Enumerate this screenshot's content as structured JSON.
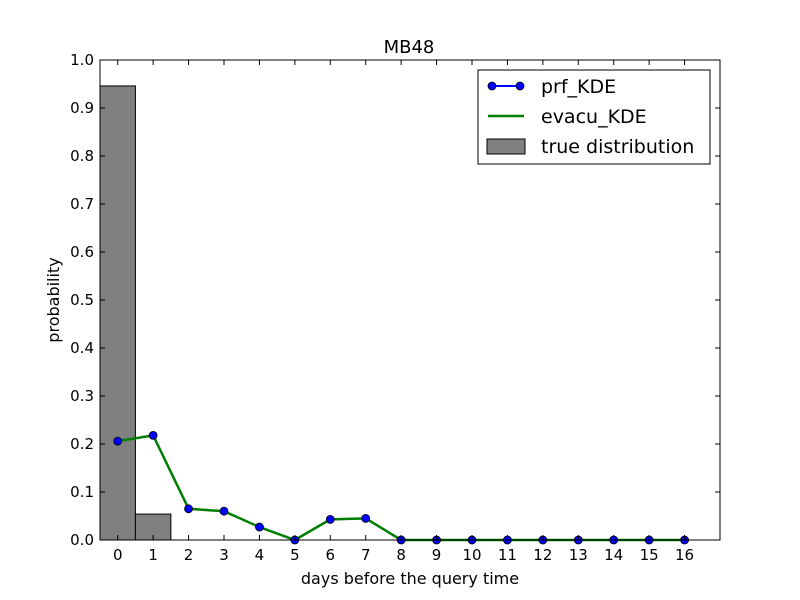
{
  "chart_data": {
    "type": "line",
    "title": "MB48",
    "xlabel": "days before the query time",
    "ylabel": "probability",
    "xlim": [
      -0.5,
      17
    ],
    "ylim": [
      0.0,
      1.0
    ],
    "x_ticks": [
      "0",
      "1",
      "2",
      "3",
      "4",
      "5",
      "6",
      "7",
      "8",
      "9",
      "10",
      "11",
      "12",
      "13",
      "14",
      "15",
      "16"
    ],
    "y_ticks": [
      "0.0",
      "0.1",
      "0.2",
      "0.3",
      "0.4",
      "0.5",
      "0.6",
      "0.7",
      "0.8",
      "0.9",
      "1.0"
    ],
    "grid": false,
    "legend_position": "top-right",
    "series": [
      {
        "name": "prf_KDE",
        "kind": "line-marker",
        "color": "#0000ff",
        "x": [
          0,
          1,
          2,
          3,
          4,
          5,
          6,
          7,
          8,
          9,
          10,
          11,
          12,
          13,
          14,
          15,
          16
        ],
        "y": [
          0.206,
          0.218,
          0.065,
          0.06,
          0.027,
          0.0,
          0.043,
          0.045,
          0.0,
          0.0,
          0.0,
          0.0,
          0.0,
          0.0,
          0.0,
          0.0,
          0.0
        ]
      },
      {
        "name": "evacu_KDE",
        "kind": "line",
        "color": "#008000",
        "x": [
          0,
          1,
          2,
          3,
          4,
          5,
          6,
          7,
          8,
          9,
          10,
          11,
          12,
          13,
          14,
          15,
          16
        ],
        "y": [
          0.206,
          0.218,
          0.065,
          0.06,
          0.027,
          0.0,
          0.043,
          0.045,
          0.0,
          0.0,
          0.0,
          0.0,
          0.0,
          0.0,
          0.0,
          0.0,
          0.0
        ]
      },
      {
        "name": "true distribution",
        "kind": "bar",
        "color": "#808080",
        "x": [
          0,
          1
        ],
        "y": [
          0.946,
          0.054
        ]
      }
    ]
  }
}
